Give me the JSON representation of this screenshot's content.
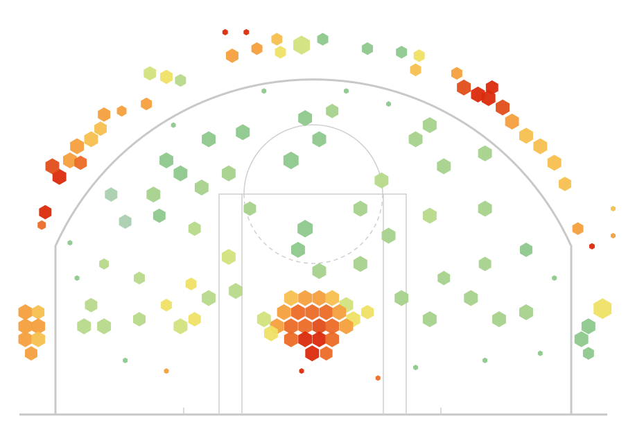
{
  "chart_data": {
    "type": "hexbin",
    "xlim": [
      -25,
      25
    ],
    "ylim": [
      0,
      35
    ],
    "points": [
      {
        "x": -24.5,
        "y": 8.7,
        "size": 1,
        "color": "#f4a03d"
      },
      {
        "x": -23.4,
        "y": 8.7,
        "size": 0.9,
        "color": "#f7c04f"
      },
      {
        "x": -24.5,
        "y": 7.5,
        "size": 1,
        "color": "#f4a03d"
      },
      {
        "x": -23.4,
        "y": 7.5,
        "size": 1,
        "color": "#f4a03d"
      },
      {
        "x": -24.5,
        "y": 6.4,
        "size": 1,
        "color": "#f4a03d"
      },
      {
        "x": -23.4,
        "y": 6.4,
        "size": 1,
        "color": "#f7c04f"
      },
      {
        "x": -24.0,
        "y": 5.2,
        "size": 0.9,
        "color": "#f4a03d"
      },
      {
        "x": 24.6,
        "y": 9.0,
        "size": 1.3,
        "color": "#eee265"
      },
      {
        "x": 23.4,
        "y": 7.5,
        "size": 1,
        "color": "#8dc88c"
      },
      {
        "x": 22.8,
        "y": 6.4,
        "size": 1,
        "color": "#8dc88c"
      },
      {
        "x": 23.4,
        "y": 5.2,
        "size": 0.8,
        "color": "#8dc88c"
      },
      {
        "x": -1.9,
        "y": 9.9,
        "size": 1,
        "color": "#f7c04f"
      },
      {
        "x": -0.7,
        "y": 9.9,
        "size": 1,
        "color": "#f4a03d"
      },
      {
        "x": 0.5,
        "y": 9.9,
        "size": 1,
        "color": "#f4a03d"
      },
      {
        "x": 1.6,
        "y": 9.9,
        "size": 1,
        "color": "#f7c04f"
      },
      {
        "x": 2.8,
        "y": 9.3,
        "size": 1,
        "color": "#d2e27c"
      },
      {
        "x": -2.5,
        "y": 8.7,
        "size": 1,
        "color": "#f4a03d"
      },
      {
        "x": -1.3,
        "y": 8.7,
        "size": 1,
        "color": "#ec6b27"
      },
      {
        "x": -0.1,
        "y": 8.7,
        "size": 1,
        "color": "#ec6b27"
      },
      {
        "x": 1.1,
        "y": 8.7,
        "size": 1,
        "color": "#ec6b27"
      },
      {
        "x": 2.2,
        "y": 8.7,
        "size": 1,
        "color": "#f4a03d"
      },
      {
        "x": 3.4,
        "y": 8.1,
        "size": 1,
        "color": "#eee265"
      },
      {
        "x": -3.1,
        "y": 7.5,
        "size": 1,
        "color": "#f4a03d"
      },
      {
        "x": -1.9,
        "y": 7.5,
        "size": 1,
        "color": "#ec6b27"
      },
      {
        "x": -0.7,
        "y": 7.5,
        "size": 1,
        "color": "#ec6b27"
      },
      {
        "x": 0.5,
        "y": 7.5,
        "size": 1,
        "color": "#e24e1a"
      },
      {
        "x": 1.6,
        "y": 7.5,
        "size": 1,
        "color": "#ec6b27"
      },
      {
        "x": 2.8,
        "y": 7.5,
        "size": 1,
        "color": "#f4a03d"
      },
      {
        "x": -1.9,
        "y": 6.4,
        "size": 1,
        "color": "#ec6b27"
      },
      {
        "x": -0.7,
        "y": 6.4,
        "size": 1,
        "color": "#da2a0c"
      },
      {
        "x": 0.5,
        "y": 6.4,
        "size": 1,
        "color": "#da2a0c"
      },
      {
        "x": 1.6,
        "y": 6.4,
        "size": 1,
        "color": "#ec6b27"
      },
      {
        "x": -0.1,
        "y": 5.2,
        "size": 1,
        "color": "#da2a0c"
      },
      {
        "x": 1.1,
        "y": 5.2,
        "size": 0.9,
        "color": "#ec6b27"
      },
      {
        "x": -3.6,
        "y": 6.9,
        "size": 1,
        "color": "#eee265"
      },
      {
        "x": -4.2,
        "y": 8.1,
        "size": 1,
        "color": "#d2e27c"
      },
      {
        "x": 4.6,
        "y": 8.7,
        "size": 0.9,
        "color": "#eee265"
      },
      {
        "x": -21.6,
        "y": 20.2,
        "size": 1,
        "color": "#da2a0c"
      },
      {
        "x": -22.2,
        "y": 21.1,
        "size": 1,
        "color": "#e24e1a"
      },
      {
        "x": -20.7,
        "y": 21.6,
        "size": 1,
        "color": "#f4a03d"
      },
      {
        "x": -20.1,
        "y": 22.8,
        "size": 1,
        "color": "#f4a03d"
      },
      {
        "x": -19.8,
        "y": 21.4,
        "size": 0.9,
        "color": "#ec6b27"
      },
      {
        "x": -18.9,
        "y": 23.4,
        "size": 1,
        "color": "#f7c04f"
      },
      {
        "x": -18.1,
        "y": 24.3,
        "size": 0.9,
        "color": "#f7c04f"
      },
      {
        "x": -17.8,
        "y": 25.5,
        "size": 0.9,
        "color": "#f4a03d"
      },
      {
        "x": -16.3,
        "y": 25.8,
        "size": 0.7,
        "color": "#f4a03d"
      },
      {
        "x": -14.2,
        "y": 26.4,
        "size": 0.8,
        "color": "#f4a03d"
      },
      {
        "x": -22.8,
        "y": 17.2,
        "size": 0.9,
        "color": "#da2a0c"
      },
      {
        "x": -23.1,
        "y": 16.1,
        "size": 0.6,
        "color": "#ec6b27"
      },
      {
        "x": -13.9,
        "y": 29.0,
        "size": 0.9,
        "color": "#d2e27c"
      },
      {
        "x": -12.5,
        "y": 28.7,
        "size": 0.9,
        "color": "#eee265"
      },
      {
        "x": -11.3,
        "y": 28.4,
        "size": 0.8,
        "color": "#b6d98a"
      },
      {
        "x": -6.9,
        "y": 30.5,
        "size": 0.9,
        "color": "#f4a03d"
      },
      {
        "x": -4.8,
        "y": 31.1,
        "size": 0.8,
        "color": "#f4a03d"
      },
      {
        "x": -3.1,
        "y": 31.9,
        "size": 0.8,
        "color": "#f7c04f"
      },
      {
        "x": -2.8,
        "y": 30.8,
        "size": 0.8,
        "color": "#eee265"
      },
      {
        "x": -1.0,
        "y": 31.4,
        "size": 1.2,
        "color": "#d2e27c"
      },
      {
        "x": 0.8,
        "y": 31.9,
        "size": 0.8,
        "color": "#8dc88c"
      },
      {
        "x": 4.6,
        "y": 31.1,
        "size": 0.8,
        "color": "#8dc88c"
      },
      {
        "x": 7.5,
        "y": 30.8,
        "size": 0.8,
        "color": "#8dc88c"
      },
      {
        "x": 9.0,
        "y": 30.5,
        "size": 0.8,
        "color": "#eee265"
      },
      {
        "x": 8.7,
        "y": 29.3,
        "size": 0.8,
        "color": "#f7c04f"
      },
      {
        "x": -7.5,
        "y": 32.5,
        "size": 0.4,
        "color": "#da2a0c"
      },
      {
        "x": -5.7,
        "y": 32.5,
        "size": 0.4,
        "color": "#da2a0c"
      },
      {
        "x": 12.2,
        "y": 29.0,
        "size": 0.8,
        "color": "#f4a03d"
      },
      {
        "x": 12.8,
        "y": 27.8,
        "size": 1,
        "color": "#e24e1a"
      },
      {
        "x": 14.0,
        "y": 27.2,
        "size": 1,
        "color": "#da2a0c"
      },
      {
        "x": 14.9,
        "y": 26.9,
        "size": 1,
        "color": "#da2a0c"
      },
      {
        "x": 15.2,
        "y": 27.8,
        "size": 0.9,
        "color": "#da2a0c"
      },
      {
        "x": 16.1,
        "y": 26.1,
        "size": 1,
        "color": "#e24e1a"
      },
      {
        "x": 16.9,
        "y": 24.9,
        "size": 1,
        "color": "#f4a03d"
      },
      {
        "x": 18.1,
        "y": 23.7,
        "size": 1,
        "color": "#f7c04f"
      },
      {
        "x": 19.3,
        "y": 22.8,
        "size": 1,
        "color": "#f7c04f"
      },
      {
        "x": 20.5,
        "y": 21.4,
        "size": 1,
        "color": "#f7c04f"
      },
      {
        "x": 21.4,
        "y": 19.6,
        "size": 0.9,
        "color": "#f7c04f"
      },
      {
        "x": 22.5,
        "y": 15.8,
        "size": 0.8,
        "color": "#f4a03d"
      },
      {
        "x": 23.7,
        "y": 14.3,
        "size": 0.4,
        "color": "#da2a0c"
      },
      {
        "x": -12.5,
        "y": 21.6,
        "size": 1,
        "color": "#8dc88c"
      },
      {
        "x": -11.3,
        "y": 20.5,
        "size": 1,
        "color": "#8dc88c"
      },
      {
        "x": -13.6,
        "y": 18.7,
        "size": 1,
        "color": "#a6d28c"
      },
      {
        "x": -8.9,
        "y": 23.4,
        "size": 1,
        "color": "#8dc88c"
      },
      {
        "x": -6.0,
        "y": 24.0,
        "size": 1,
        "color": "#8dc88c"
      },
      {
        "x": -1.9,
        "y": 21.6,
        "size": 1.1,
        "color": "#8dc88c"
      },
      {
        "x": -0.7,
        "y": 25.2,
        "size": 1,
        "color": "#8dc88c"
      },
      {
        "x": 0.5,
        "y": 23.4,
        "size": 1,
        "color": "#8dc88c"
      },
      {
        "x": 1.6,
        "y": 25.8,
        "size": 0.9,
        "color": "#a6d28c"
      },
      {
        "x": 8.7,
        "y": 23.4,
        "size": 1,
        "color": "#a6d28c"
      },
      {
        "x": 11.1,
        "y": 21.1,
        "size": 1,
        "color": "#a6d28c"
      },
      {
        "x": 14.6,
        "y": 17.5,
        "size": 1,
        "color": "#a6d28c"
      },
      {
        "x": 9.9,
        "y": 16.9,
        "size": 1,
        "color": "#b6d98a"
      },
      {
        "x": 6.4,
        "y": 15.2,
        "size": 1,
        "color": "#a6d28c"
      },
      {
        "x": -0.7,
        "y": 15.8,
        "size": 1.1,
        "color": "#8dc88c"
      },
      {
        "x": -1.3,
        "y": 14.0,
        "size": 1,
        "color": "#8dc88c"
      },
      {
        "x": 0.5,
        "y": 12.2,
        "size": 1,
        "color": "#a6d28c"
      },
      {
        "x": 4.0,
        "y": 12.8,
        "size": 1,
        "color": "#a6d28c"
      },
      {
        "x": 7.5,
        "y": 9.9,
        "size": 1,
        "color": "#a6d28c"
      },
      {
        "x": 9.9,
        "y": 8.1,
        "size": 1,
        "color": "#a6d28c"
      },
      {
        "x": 15.8,
        "y": 8.1,
        "size": 1,
        "color": "#a6d28c"
      },
      {
        "x": 18.1,
        "y": 8.7,
        "size": 1,
        "color": "#a6d28c"
      },
      {
        "x": 13.4,
        "y": 9.9,
        "size": 1,
        "color": "#a6d28c"
      },
      {
        "x": -19.5,
        "y": 7.5,
        "size": 1,
        "color": "#b6d98a"
      },
      {
        "x": -17.8,
        "y": 7.5,
        "size": 1,
        "color": "#b6d98a"
      },
      {
        "x": -18.9,
        "y": 9.3,
        "size": 0.9,
        "color": "#b6d98a"
      },
      {
        "x": -14.8,
        "y": 8.1,
        "size": 0.9,
        "color": "#b6d98a"
      },
      {
        "x": -11.3,
        "y": 7.5,
        "size": 1,
        "color": "#d2e27c"
      },
      {
        "x": -8.9,
        "y": 9.9,
        "size": 1,
        "color": "#b6d98a"
      },
      {
        "x": -6.6,
        "y": 10.5,
        "size": 1,
        "color": "#b6d98a"
      },
      {
        "x": -7.2,
        "y": 13.4,
        "size": 1,
        "color": "#d2e27c"
      },
      {
        "x": -10.1,
        "y": 15.8,
        "size": 0.9,
        "color": "#b6d98a"
      },
      {
        "x": -13.1,
        "y": 16.9,
        "size": 0.9,
        "color": "#8dc88c"
      },
      {
        "x": -16.0,
        "y": 16.4,
        "size": 0.9,
        "color": "#a9cfae"
      },
      {
        "x": -17.2,
        "y": 18.7,
        "size": 0.9,
        "color": "#a9cfae"
      },
      {
        "x": -14.8,
        "y": 11.6,
        "size": 0.8,
        "color": "#b6d98a"
      },
      {
        "x": -17.8,
        "y": 12.8,
        "size": 0.7,
        "color": "#b6d98a"
      },
      {
        "x": 18.1,
        "y": 14.0,
        "size": 0.9,
        "color": "#8dc88c"
      },
      {
        "x": 14.6,
        "y": 22.2,
        "size": 1,
        "color": "#a6d28c"
      },
      {
        "x": 9.9,
        "y": 24.6,
        "size": 1,
        "color": "#a6d28c"
      },
      {
        "x": -7.2,
        "y": 20.5,
        "size": 1,
        "color": "#a6d28c"
      },
      {
        "x": -9.5,
        "y": 19.3,
        "size": 1,
        "color": "#a6d28c"
      },
      {
        "x": 5.8,
        "y": 19.9,
        "size": 1,
        "color": "#b6d98a"
      },
      {
        "x": 14.6,
        "y": 12.8,
        "size": 0.9,
        "color": "#a6d28c"
      },
      {
        "x": -5.4,
        "y": 17.5,
        "size": 0.9,
        "color": "#a6d28c"
      },
      {
        "x": 4.0,
        "y": 17.5,
        "size": 1,
        "color": "#a6d28c"
      },
      {
        "x": 11.1,
        "y": 11.6,
        "size": 0.9,
        "color": "#a6d28c"
      },
      {
        "x": -10.4,
        "y": 11.1,
        "size": 0.8,
        "color": "#eee265"
      },
      {
        "x": -12.5,
        "y": 9.3,
        "size": 0.8,
        "color": "#eee265"
      },
      {
        "x": -10.1,
        "y": 8.1,
        "size": 0.9,
        "color": "#eee265"
      },
      {
        "x": -20.7,
        "y": 14.6,
        "size": 0.35,
        "color": "#8dc88c"
      },
      {
        "x": -20.1,
        "y": 11.6,
        "size": 0.35,
        "color": "#8dc88c"
      },
      {
        "x": -16.0,
        "y": 4.6,
        "size": 0.35,
        "color": "#8dc88c"
      },
      {
        "x": 8.7,
        "y": 4.0,
        "size": 0.35,
        "color": "#8dc88c"
      },
      {
        "x": 14.6,
        "y": 4.6,
        "size": 0.35,
        "color": "#8dc88c"
      },
      {
        "x": 19.3,
        "y": 5.2,
        "size": 0.35,
        "color": "#8dc88c"
      },
      {
        "x": 2.8,
        "y": 27.5,
        "size": 0.35,
        "color": "#8dc88c"
      },
      {
        "x": -4.2,
        "y": 27.5,
        "size": 0.35,
        "color": "#8dc88c"
      },
      {
        "x": 6.4,
        "y": 26.4,
        "size": 0.35,
        "color": "#8dc88c"
      },
      {
        "x": -11.9,
        "y": 24.6,
        "size": 0.35,
        "color": "#8dc88c"
      },
      {
        "x": 20.5,
        "y": 11.6,
        "size": 0.35,
        "color": "#8dc88c"
      },
      {
        "x": 5.5,
        "y": 3.1,
        "size": 0.35,
        "color": "#ec6b27"
      },
      {
        "x": -1.0,
        "y": 3.7,
        "size": 0.35,
        "color": "#da2a0c"
      },
      {
        "x": -12.5,
        "y": 3.7,
        "size": 0.35,
        "color": "#f4a03d"
      },
      {
        "x": 25.5,
        "y": 17.5,
        "size": 0.35,
        "color": "#f7c04f"
      },
      {
        "x": 25.5,
        "y": 15.2,
        "size": 0.35,
        "color": "#f4a03d"
      }
    ]
  }
}
